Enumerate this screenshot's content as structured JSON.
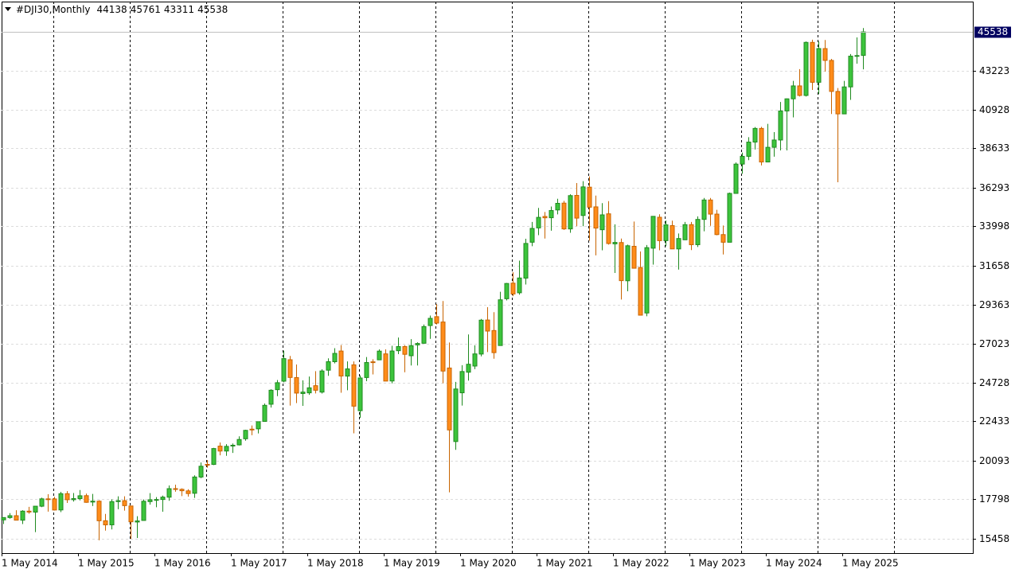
{
  "chart_data": {
    "type": "candlestick",
    "title": "#DJI30,Monthly",
    "categories": [
      "1 May 2014",
      null,
      null,
      null,
      null,
      null,
      null,
      null,
      null,
      null,
      null,
      null,
      "1 May 2015",
      null,
      null,
      null,
      null,
      null,
      null,
      null,
      null,
      null,
      null,
      null,
      "1 May 2016",
      null,
      null,
      null,
      null,
      null,
      null,
      null,
      null,
      null,
      null,
      null,
      "1 May 2017",
      null,
      null,
      null,
      null,
      null,
      null,
      null,
      null,
      null,
      null,
      null,
      "1 May 2018",
      null,
      null,
      null,
      null,
      null,
      null,
      null,
      null,
      null,
      null,
      null,
      "1 May 2019",
      null,
      null,
      null,
      null,
      null,
      null,
      null,
      null,
      null,
      null,
      null,
      "1 May 2020",
      null,
      null,
      null,
      null,
      null,
      null,
      null,
      null,
      null,
      null,
      null,
      "1 May 2021",
      null,
      null,
      null,
      null,
      null,
      null,
      null,
      null,
      null,
      null,
      null,
      "1 May 2022",
      null,
      null,
      null,
      null,
      null,
      null,
      null,
      null,
      null,
      null,
      null,
      "1 May 2023",
      null,
      null,
      null,
      null,
      null,
      null,
      null,
      null,
      null,
      null,
      null,
      "1 May 2024",
      null,
      null,
      null,
      null,
      null,
      null,
      null,
      null,
      null,
      null,
      null,
      "1 May 2025",
      null,
      null,
      null
    ],
    "ohlc": [
      [
        16581,
        16736,
        16334,
        16717
      ],
      [
        16715,
        16978,
        16653,
        16827
      ],
      [
        16827,
        17152,
        16563,
        16563
      ],
      [
        16561,
        17153,
        16333,
        17098
      ],
      [
        17098,
        17350,
        16946,
        17043
      ],
      [
        17040,
        17395,
        15855,
        17391
      ],
      [
        17390,
        17895,
        17334,
        17828
      ],
      [
        17827,
        18103,
        17068,
        17823
      ],
      [
        17823,
        17951,
        17136,
        17165
      ],
      [
        17169,
        18244,
        17037,
        18133
      ],
      [
        18134,
        18288,
        17585,
        17776
      ],
      [
        17778,
        18175,
        17664,
        17841
      ],
      [
        17840,
        18351,
        17736,
        18011
      ],
      [
        18017,
        18137,
        17596,
        17620
      ],
      [
        17638,
        18121,
        17399,
        17690
      ],
      [
        17690,
        17744,
        15370,
        16528
      ],
      [
        16528,
        16934,
        15942,
        16285
      ],
      [
        16285,
        17800,
        16013,
        17664
      ],
      [
        17664,
        17978,
        17211,
        17720
      ],
      [
        17720,
        17980,
        17128,
        17425
      ],
      [
        17405,
        17405,
        15450,
        16466
      ],
      [
        16453,
        16795,
        15503,
        16517
      ],
      [
        16546,
        17790,
        16546,
        17685
      ],
      [
        17662,
        18168,
        17485,
        17774
      ],
      [
        17783,
        17934,
        17331,
        17787
      ],
      [
        17789,
        18017,
        17063,
        17930
      ],
      [
        17925,
        18622,
        17713,
        18432
      ],
      [
        18433,
        18668,
        18247,
        18401
      ],
      [
        18393,
        18450,
        17992,
        18308
      ],
      [
        18300,
        18399,
        17959,
        18142
      ],
      [
        18158,
        19226,
        17884,
        19124
      ],
      [
        19122,
        19987,
        19052,
        19763
      ],
      [
        19873,
        20125,
        19677,
        19864
      ],
      [
        19872,
        20851,
        19831,
        20812
      ],
      [
        20957,
        21169,
        20412,
        20663
      ],
      [
        20665,
        21070,
        20379,
        20941
      ],
      [
        20962,
        21112,
        20554,
        21009
      ],
      [
        21030,
        21535,
        20994,
        21350
      ],
      [
        21392,
        21930,
        21279,
        21891
      ],
      [
        21962,
        22180,
        21600,
        21948
      ],
      [
        21982,
        22420,
        21709,
        22405
      ],
      [
        22423,
        23485,
        22416,
        23377
      ],
      [
        23442,
        24328,
        23242,
        24272
      ],
      [
        24305,
        24876,
        23921,
        24719
      ],
      [
        24809,
        26617,
        24741,
        26149
      ],
      [
        26083,
        26306,
        23360,
        25029
      ],
      [
        25024,
        25800,
        23509,
        24103
      ],
      [
        24077,
        24858,
        23344,
        24163
      ],
      [
        24117,
        25086,
        23997,
        24416
      ],
      [
        24542,
        25402,
        24084,
        24271
      ],
      [
        24161,
        25518,
        24077,
        25415
      ],
      [
        25461,
        26167,
        25124,
        25965
      ],
      [
        25964,
        26770,
        25866,
        26458
      ],
      [
        26598,
        26952,
        24123,
        25116
      ],
      [
        25111,
        25980,
        24268,
        25538
      ],
      [
        25780,
        25981,
        21713,
        23327
      ],
      [
        23058,
        25150,
        22638,
        24999
      ],
      [
        25025,
        26241,
        24805,
        25916
      ],
      [
        25958,
        26110,
        25209,
        25929
      ],
      [
        26076,
        26696,
        26071,
        26593
      ],
      [
        26430,
        26696,
        24815,
        24815
      ],
      [
        24820,
        26907,
        24680,
        26600
      ],
      [
        26618,
        27398,
        26415,
        26864
      ],
      [
        26863,
        26947,
        25339,
        26403
      ],
      [
        26319,
        27306,
        25743,
        26917
      ],
      [
        26963,
        27118,
        25743,
        27046
      ],
      [
        27059,
        28175,
        27038,
        28051
      ],
      [
        28109,
        28701,
        27325,
        28538
      ],
      [
        28638,
        29374,
        28170,
        28256
      ],
      [
        28320,
        29568,
        24681,
        25409
      ],
      [
        25591,
        27102,
        18213,
        21917
      ],
      [
        21227,
        24764,
        20735,
        24346
      ],
      [
        24120,
        25758,
        23361,
        25383
      ],
      [
        25342,
        27581,
        24843,
        25813
      ],
      [
        25706,
        26939,
        25523,
        26428
      ],
      [
        26419,
        28502,
        26284,
        28430
      ],
      [
        28439,
        29199,
        26537,
        27782
      ],
      [
        27816,
        28902,
        26143,
        26502
      ],
      [
        26925,
        30116,
        26925,
        29638
      ],
      [
        29701,
        30637,
        29598,
        30606
      ],
      [
        30627,
        31272,
        29856,
        29983
      ],
      [
        30054,
        31961,
        29945,
        30932
      ],
      [
        30924,
        33259,
        30547,
        32982
      ],
      [
        33054,
        34257,
        32818,
        33875
      ],
      [
        33904,
        35091,
        33473,
        34529
      ],
      [
        34584,
        34849,
        33271,
        34503
      ],
      [
        34507,
        35171,
        33741,
        34935
      ],
      [
        34969,
        35631,
        34707,
        35361
      ],
      [
        35375,
        35510,
        33785,
        33844
      ],
      [
        33843,
        35897,
        33613,
        35820
      ],
      [
        35833,
        36566,
        34006,
        34484
      ],
      [
        34640,
        36679,
        34006,
        36338
      ],
      [
        36321,
        36953,
        33150,
        35132
      ],
      [
        35153,
        35824,
        32272,
        33893
      ],
      [
        33795,
        35372,
        32578,
        34678
      ],
      [
        34740,
        35493,
        32913,
        32977
      ],
      [
        32957,
        34118,
        31228,
        33043
      ],
      [
        33035,
        33272,
        29653,
        30775
      ],
      [
        30767,
        32910,
        30144,
        32845
      ],
      [
        32813,
        34281,
        31510,
        31510
      ],
      [
        31555,
        32504,
        28715,
        28726
      ],
      [
        28855,
        32889,
        28660,
        32733
      ],
      [
        32701,
        34590,
        31727,
        34590
      ],
      [
        34536,
        34712,
        32573,
        33147
      ],
      [
        33148,
        34342,
        32812,
        34086
      ],
      [
        34039,
        34335,
        32657,
        32657
      ],
      [
        32656,
        33572,
        31429,
        33274
      ],
      [
        33198,
        34257,
        33198,
        34098
      ],
      [
        34098,
        34257,
        32587,
        32908
      ],
      [
        32908,
        34588,
        32772,
        34408
      ],
      [
        34408,
        35680,
        33705,
        35560
      ],
      [
        35560,
        35679,
        34029,
        34722
      ],
      [
        34722,
        34977,
        33464,
        33508
      ],
      [
        33508,
        34044,
        32327,
        33053
      ],
      [
        33053,
        36000,
        33053,
        35951
      ],
      [
        35951,
        37790,
        35951,
        37690
      ],
      [
        37690,
        38371,
        37123,
        38150
      ],
      [
        38150,
        39286,
        37925,
        38996
      ],
      [
        38996,
        39889,
        38553,
        39807
      ],
      [
        39807,
        39900,
        37611,
        37816
      ],
      [
        37816,
        40077,
        37816,
        38686
      ],
      [
        38686,
        39589,
        38131,
        39119
      ],
      [
        39119,
        41376,
        38499,
        40843
      ],
      [
        40843,
        41585,
        38500,
        41563
      ],
      [
        41563,
        42628,
        40462,
        42330
      ],
      [
        42330,
        43325,
        41700,
        41763
      ],
      [
        41763,
        44965,
        41700,
        44911
      ],
      [
        44911,
        45074,
        42092,
        42544
      ],
      [
        42544,
        44966,
        41844,
        44545
      ],
      [
        44545,
        45054,
        43178,
        43841
      ],
      [
        43841,
        43930,
        40662,
        42002
      ],
      [
        42002,
        42200,
        36612,
        40669
      ],
      [
        40669,
        42627,
        40669,
        42270
      ],
      [
        42270,
        44220,
        41500,
        44095
      ],
      [
        44095,
        45206,
        43650,
        44131
      ],
      [
        44138,
        45761,
        43311,
        45538
      ]
    ],
    "up_color": "#3cc43c",
    "down_color": "#ff8c1a",
    "ylim": [
      14608,
      47332
    ],
    "yticks": [
      15458,
      17798,
      20093,
      22433,
      24728,
      27023,
      29363,
      31658,
      33998,
      36293,
      38633,
      40928,
      43223
    ],
    "grid": true
  }
}
